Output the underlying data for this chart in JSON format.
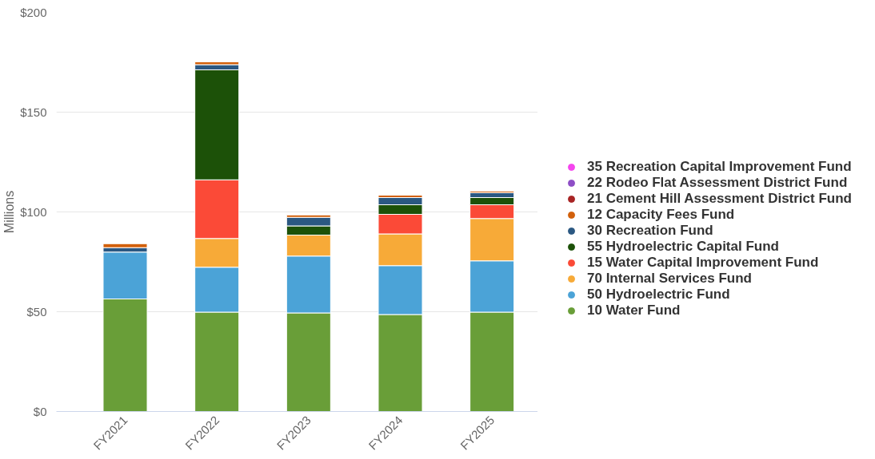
{
  "chart_data": {
    "type": "bar",
    "stacked": true,
    "categories": [
      "FY2021",
      "FY2022",
      "FY2023",
      "FY2024",
      "FY2025"
    ],
    "ylabel": "Millions",
    "ylim": [
      0,
      200
    ],
    "yticks": [
      {
        "value": 0,
        "label": "$0"
      },
      {
        "value": 50,
        "label": "$50"
      },
      {
        "value": 100,
        "label": "$100"
      },
      {
        "value": 150,
        "label": "$150"
      },
      {
        "value": 200,
        "label": "$200"
      }
    ],
    "grid": "y",
    "legend": "right",
    "series": [
      {
        "name": "10 Water Fund",
        "color": "#699e38",
        "values": [
          56.4,
          49.8,
          49.4,
          48.6,
          49.8
        ]
      },
      {
        "name": "50 Hydroelectric Fund",
        "color": "#4ba3d7",
        "values": [
          23.5,
          22.5,
          28.5,
          24.5,
          25.7
        ]
      },
      {
        "name": "70 Internal Services Fund",
        "color": "#f7aa38",
        "values": [
          null,
          14.4,
          10.5,
          15.9,
          21.2
        ]
      },
      {
        "name": "15 Water Capital Improvement Fund",
        "color": "#fb4a37",
        "values": [
          null,
          29.4,
          null,
          9.8,
          6.9
        ]
      },
      {
        "name": "55 Hydroelectric Capital Fund",
        "color": "#1c5108",
        "values": [
          null,
          55.1,
          4.6,
          4.8,
          3.6
        ]
      },
      {
        "name": "30 Recreation Fund",
        "color": "#2b5882",
        "values": [
          2.2,
          2.6,
          4.3,
          3.6,
          2.4
        ]
      },
      {
        "name": "12 Capacity Fees Fund",
        "color": "#d2600b",
        "values": [
          2.0,
          1.4,
          1.2,
          1.2,
          0.8
        ]
      },
      {
        "name": "21 Cement Hill Assessment District Fund",
        "color": "#a82424",
        "values": [
          null,
          null,
          null,
          null,
          null
        ]
      },
      {
        "name": "22 Rodeo Flat Assessment District Fund",
        "color": "#8e4ec6",
        "values": [
          null,
          null,
          null,
          null,
          null
        ]
      },
      {
        "name": "35 Recreation Capital Improvement Fund",
        "color": "#f545ee",
        "values": [
          null,
          null,
          null,
          null,
          null
        ]
      }
    ]
  }
}
